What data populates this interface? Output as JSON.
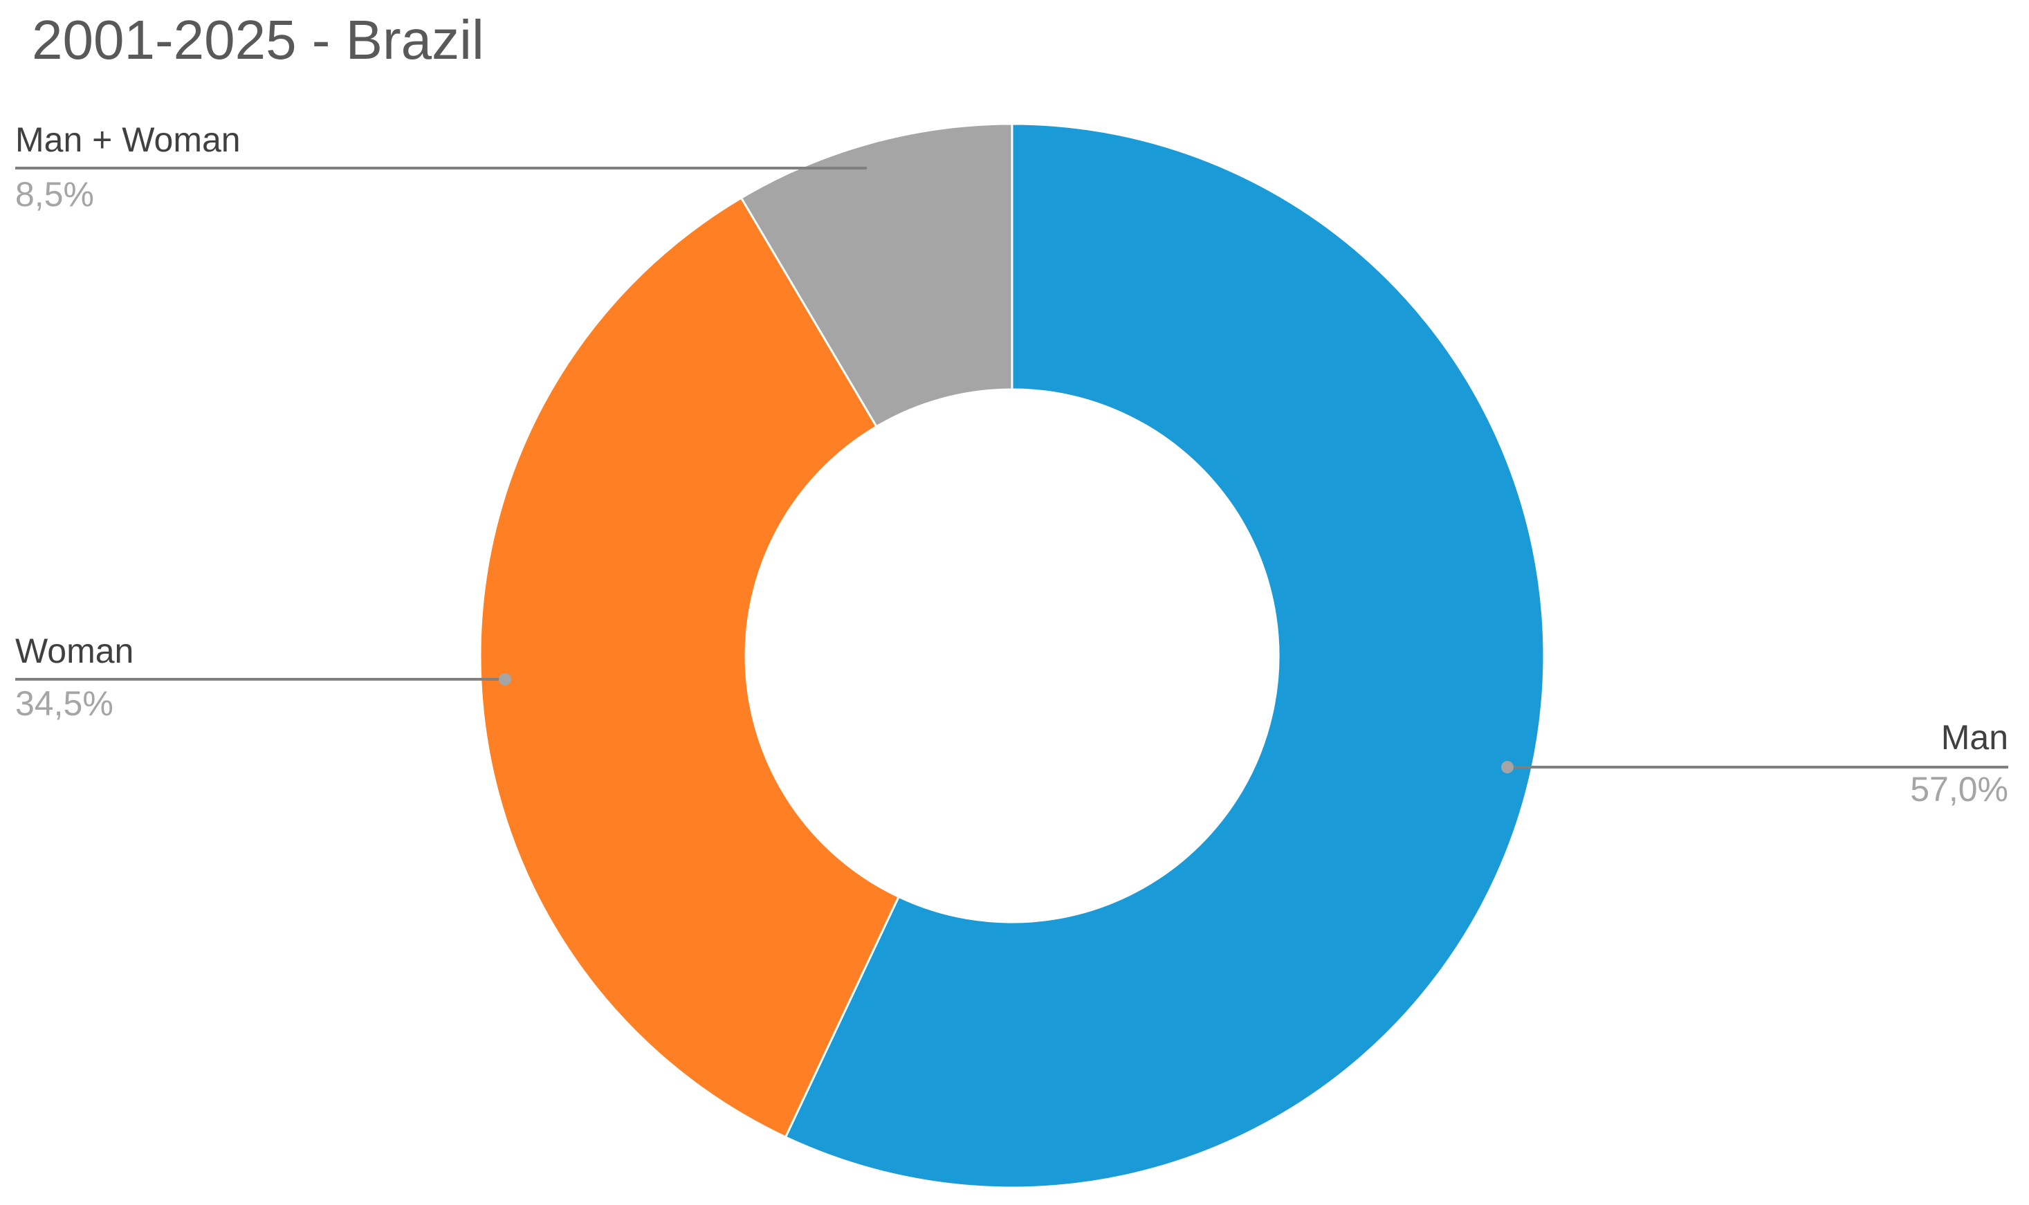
{
  "chart_data": {
    "type": "donut",
    "title": "2001-2025 - Brazil",
    "categories": [
      "Man",
      "Woman",
      "Man + Woman"
    ],
    "values": [
      57.0,
      34.5,
      8.5
    ],
    "value_labels": [
      "57,0%",
      "34,5%",
      "8,5%"
    ],
    "colors": [
      "#1a9bd7",
      "#fe7f24",
      "#a5a5a5"
    ]
  }
}
